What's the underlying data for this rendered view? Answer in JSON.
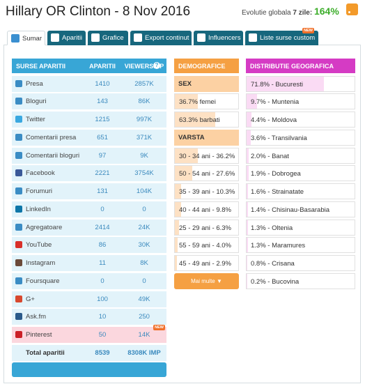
{
  "header": {
    "title": "Hillary OR Clinton - 8 Nov 2016",
    "evolution_label": "Evolutie globala",
    "evolution_period": "7 zile:",
    "evolution_value": "164%"
  },
  "tabs": [
    {
      "label": "Sumar",
      "active": true
    },
    {
      "label": "Aparitii"
    },
    {
      "label": "Grafice"
    },
    {
      "label": "Export continut"
    },
    {
      "label": "Influencers"
    },
    {
      "label": "Liste surse custom",
      "badge": "NEW"
    }
  ],
  "sources": {
    "headers": [
      "SURSE APARITII",
      "APARITII",
      "VIEWERSHIP"
    ],
    "rows": [
      {
        "name": "Presa",
        "count": 1410,
        "viewership": "2857K"
      },
      {
        "name": "Bloguri",
        "count": 143,
        "viewership": "86K"
      },
      {
        "name": "Twitter",
        "count": 1215,
        "viewership": "997K"
      },
      {
        "name": "Comentarii presa",
        "count": 651,
        "viewership": "371K"
      },
      {
        "name": "Comentarii bloguri",
        "count": 97,
        "viewership": "9K"
      },
      {
        "name": "Facebook",
        "count": 2221,
        "viewership": "3754K"
      },
      {
        "name": "Forumuri",
        "count": 131,
        "viewership": "104K"
      },
      {
        "name": "LinkedIn",
        "count": 0,
        "viewership": "0"
      },
      {
        "name": "Agregatoare",
        "count": 2414,
        "viewership": "24K"
      },
      {
        "name": "YouTube",
        "count": 86,
        "viewership": "30K"
      },
      {
        "name": "Instagram",
        "count": 11,
        "viewership": "8K"
      },
      {
        "name": "Foursquare",
        "count": 0,
        "viewership": "0"
      },
      {
        "name": "G+",
        "count": 100,
        "viewership": "49K"
      },
      {
        "name": "Ask.fm",
        "count": 10,
        "viewership": "250"
      },
      {
        "name": "Pinterest",
        "count": 50,
        "viewership": "14K",
        "badge": "NEW",
        "highlight": true
      }
    ],
    "total": {
      "name": "Total aparitii",
      "count": 8539,
      "viewership": "8308K IMP"
    }
  },
  "demographics": {
    "title": "DEMOGRAFICE",
    "sex": {
      "title": "SEX",
      "items": [
        {
          "label": "36.7% femei",
          "value": 36.7
        },
        {
          "label": "63.3% barbati",
          "value": 63.3
        }
      ]
    },
    "age": {
      "title": "VARSTA",
      "items": [
        {
          "label": "30 - 34 ani - 36.2%",
          "value": 36.2
        },
        {
          "label": "50 - 54 ani - 27.6%",
          "value": 27.6
        },
        {
          "label": "35 - 39 ani - 10.3%",
          "value": 10.3
        },
        {
          "label": "40 - 44 ani - 9.8%",
          "value": 9.8
        },
        {
          "label": "25 - 29 ani - 6.3%",
          "value": 6.3
        },
        {
          "label": "55 - 59 ani - 4.0%",
          "value": 4.0
        },
        {
          "label": "45 - 49 ani - 2.9%",
          "value": 2.9
        }
      ]
    },
    "more": "Mai multe ▼"
  },
  "geography": {
    "title": "DISTRIBUTIE GEOGRAFICA",
    "items": [
      {
        "label": "71.8% - Bucuresti",
        "value": 71.8
      },
      {
        "label": "9.7% - Muntenia",
        "value": 9.7
      },
      {
        "label": "4.4% - Moldova",
        "value": 4.4
      },
      {
        "label": "3.6% - Transilvania",
        "value": 3.6
      },
      {
        "label": "2.0% - Banat",
        "value": 2.0
      },
      {
        "label": "1.9% - Dobrogea",
        "value": 1.9
      },
      {
        "label": "1.6% - Strainatate",
        "value": 1.6
      },
      {
        "label": "1.4% - Chisinau-Basarabia",
        "value": 1.4
      },
      {
        "label": "1.3% - Oltenia",
        "value": 1.3
      },
      {
        "label": "1.3% - Maramures",
        "value": 1.3
      },
      {
        "label": "0.8% - Crisana",
        "value": 0.8
      },
      {
        "label": "0.2% - Bucovina",
        "value": 0.2
      }
    ]
  }
}
